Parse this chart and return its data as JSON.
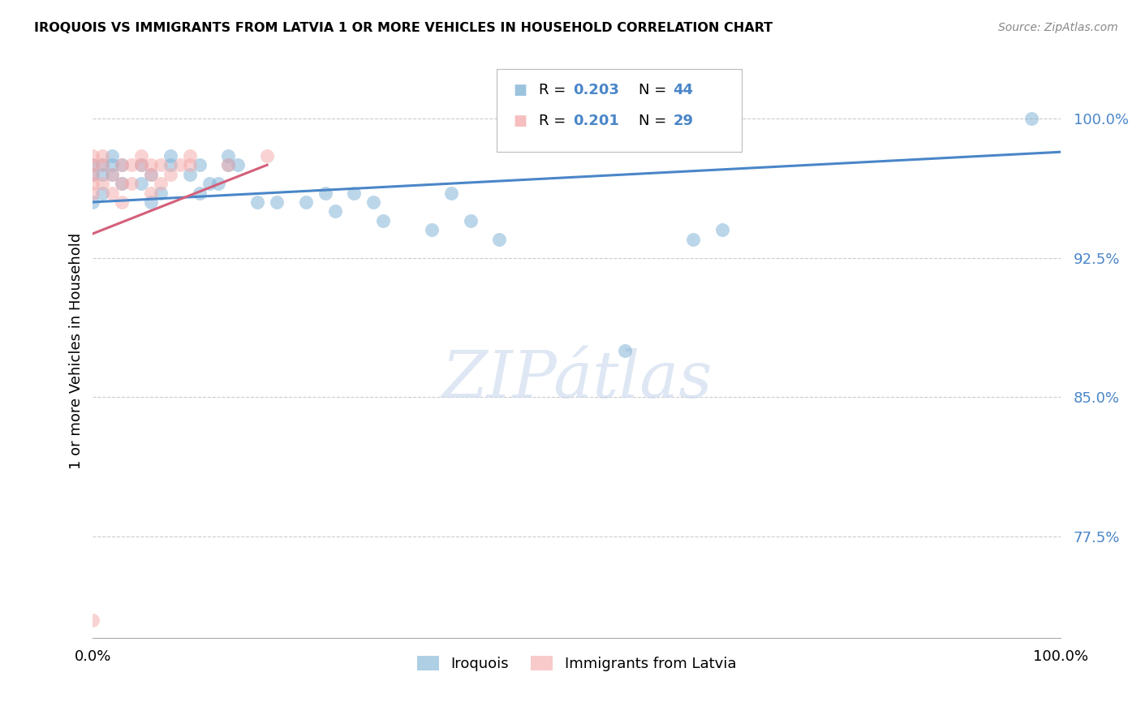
{
  "title": "IROQUOIS VS IMMIGRANTS FROM LATVIA 1 OR MORE VEHICLES IN HOUSEHOLD CORRELATION CHART",
  "source": "Source: ZipAtlas.com",
  "ylabel": "1 or more Vehicles in Household",
  "xmin": 0.0,
  "xmax": 1.0,
  "ymin": 0.72,
  "ymax": 1.03,
  "yticks": [
    0.775,
    0.85,
    0.925,
    1.0
  ],
  "ytick_labels": [
    "77.5%",
    "85.0%",
    "92.5%",
    "100.0%"
  ],
  "watermark": "ZIPátlas",
  "legend_blue_label": "Iroquois",
  "legend_pink_label": "Immigrants from Latvia",
  "blue_color": "#7bafd4",
  "pink_color": "#f4a8a8",
  "line_blue": "#4a86c8",
  "line_pink": "#d45f7a",
  "iroquois_x": [
    0.0,
    0.0,
    0.0,
    0.01,
    0.01,
    0.01,
    0.02,
    0.02,
    0.02,
    0.03,
    0.03,
    0.05,
    0.05,
    0.06,
    0.06,
    0.07,
    0.08,
    0.08,
    0.1,
    0.11,
    0.11,
    0.12,
    0.13,
    0.14,
    0.14,
    0.15,
    0.17,
    0.19,
    0.22,
    0.24,
    0.25,
    0.27,
    0.29,
    0.3,
    0.35,
    0.37,
    0.39,
    0.42,
    0.55,
    0.62,
    0.65,
    0.97
  ],
  "iroquois_y": [
    0.955,
    0.97,
    0.975,
    0.96,
    0.97,
    0.975,
    0.97,
    0.975,
    0.98,
    0.965,
    0.975,
    0.965,
    0.975,
    0.955,
    0.97,
    0.96,
    0.975,
    0.98,
    0.97,
    0.975,
    0.96,
    0.965,
    0.965,
    0.975,
    0.98,
    0.975,
    0.955,
    0.955,
    0.955,
    0.96,
    0.95,
    0.96,
    0.955,
    0.945,
    0.94,
    0.96,
    0.945,
    0.935,
    0.875,
    0.935,
    0.94,
    1.0
  ],
  "latvia_x": [
    0.0,
    0.0,
    0.0,
    0.0,
    0.0,
    0.01,
    0.01,
    0.01,
    0.02,
    0.02,
    0.03,
    0.03,
    0.03,
    0.04,
    0.04,
    0.05,
    0.05,
    0.06,
    0.06,
    0.06,
    0.07,
    0.07,
    0.08,
    0.09,
    0.1,
    0.1,
    0.14,
    0.18,
    0.0
  ],
  "latvia_y": [
    0.97,
    0.975,
    0.98,
    0.96,
    0.965,
    0.965,
    0.975,
    0.98,
    0.96,
    0.97,
    0.955,
    0.965,
    0.975,
    0.965,
    0.975,
    0.975,
    0.98,
    0.96,
    0.97,
    0.975,
    0.965,
    0.975,
    0.97,
    0.975,
    0.975,
    0.98,
    0.975,
    0.98,
    0.73
  ],
  "blue_trendline_x": [
    0.0,
    1.0
  ],
  "blue_trendline_y": [
    0.955,
    0.982
  ],
  "pink_trendline_x": [
    0.0,
    0.18
  ],
  "pink_trendline_y": [
    0.938,
    0.975
  ]
}
